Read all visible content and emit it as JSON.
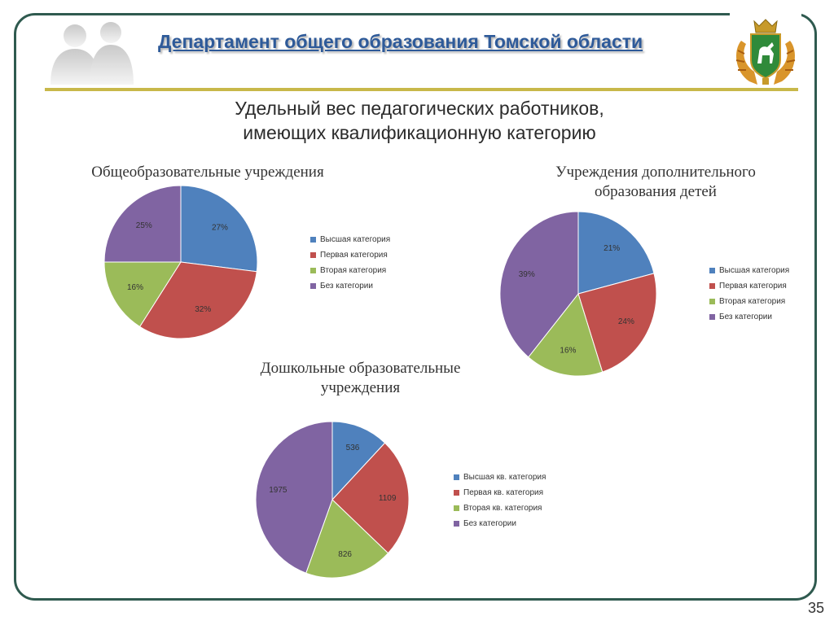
{
  "header": {
    "title": "Департамент общего образования Томской области"
  },
  "main_title_lines": [
    "Удельный вес педагогических работников,",
    "имеющих квалификационную категорию"
  ],
  "colors": {
    "blue": "#4f81bd",
    "red": "#c0504d",
    "green": "#9bbb59",
    "purple": "#8064a2",
    "frame": "#2f5a4f",
    "title": "#2e5a99",
    "rule": "#c8b84a"
  },
  "page_number": "35",
  "chart_data": [
    {
      "type": "pie",
      "title_lines": [
        "Общеобразовательные учреждения"
      ],
      "categories": [
        "Высшая категория",
        "Первая категория",
        "Вторая категория",
        "Без категории"
      ],
      "values": [
        27,
        32,
        16,
        25
      ],
      "labels": [
        "27%",
        "32%",
        "16%",
        "25%"
      ],
      "legend": "right"
    },
    {
      "type": "pie",
      "title_lines": [
        "Учреждения дополнительного",
        "образования детей"
      ],
      "categories": [
        "Высшая категория",
        "Первая категория",
        "Вторая категория",
        "Без категории"
      ],
      "values": [
        21,
        24,
        16,
        39
      ],
      "labels": [
        "21%",
        "24%",
        "16%",
        "39%"
      ],
      "legend": "right"
    },
    {
      "type": "pie",
      "title_lines": [
        "Дошкольные образовательные",
        "учреждения"
      ],
      "categories": [
        "Высшая кв. категория",
        "Первая кв. категория",
        "Вторая кв. категория",
        "Без категории"
      ],
      "values": [
        536,
        1109,
        826,
        1975
      ],
      "labels": [
        "536",
        "1109",
        "826",
        "1975"
      ],
      "legend": "right"
    }
  ]
}
